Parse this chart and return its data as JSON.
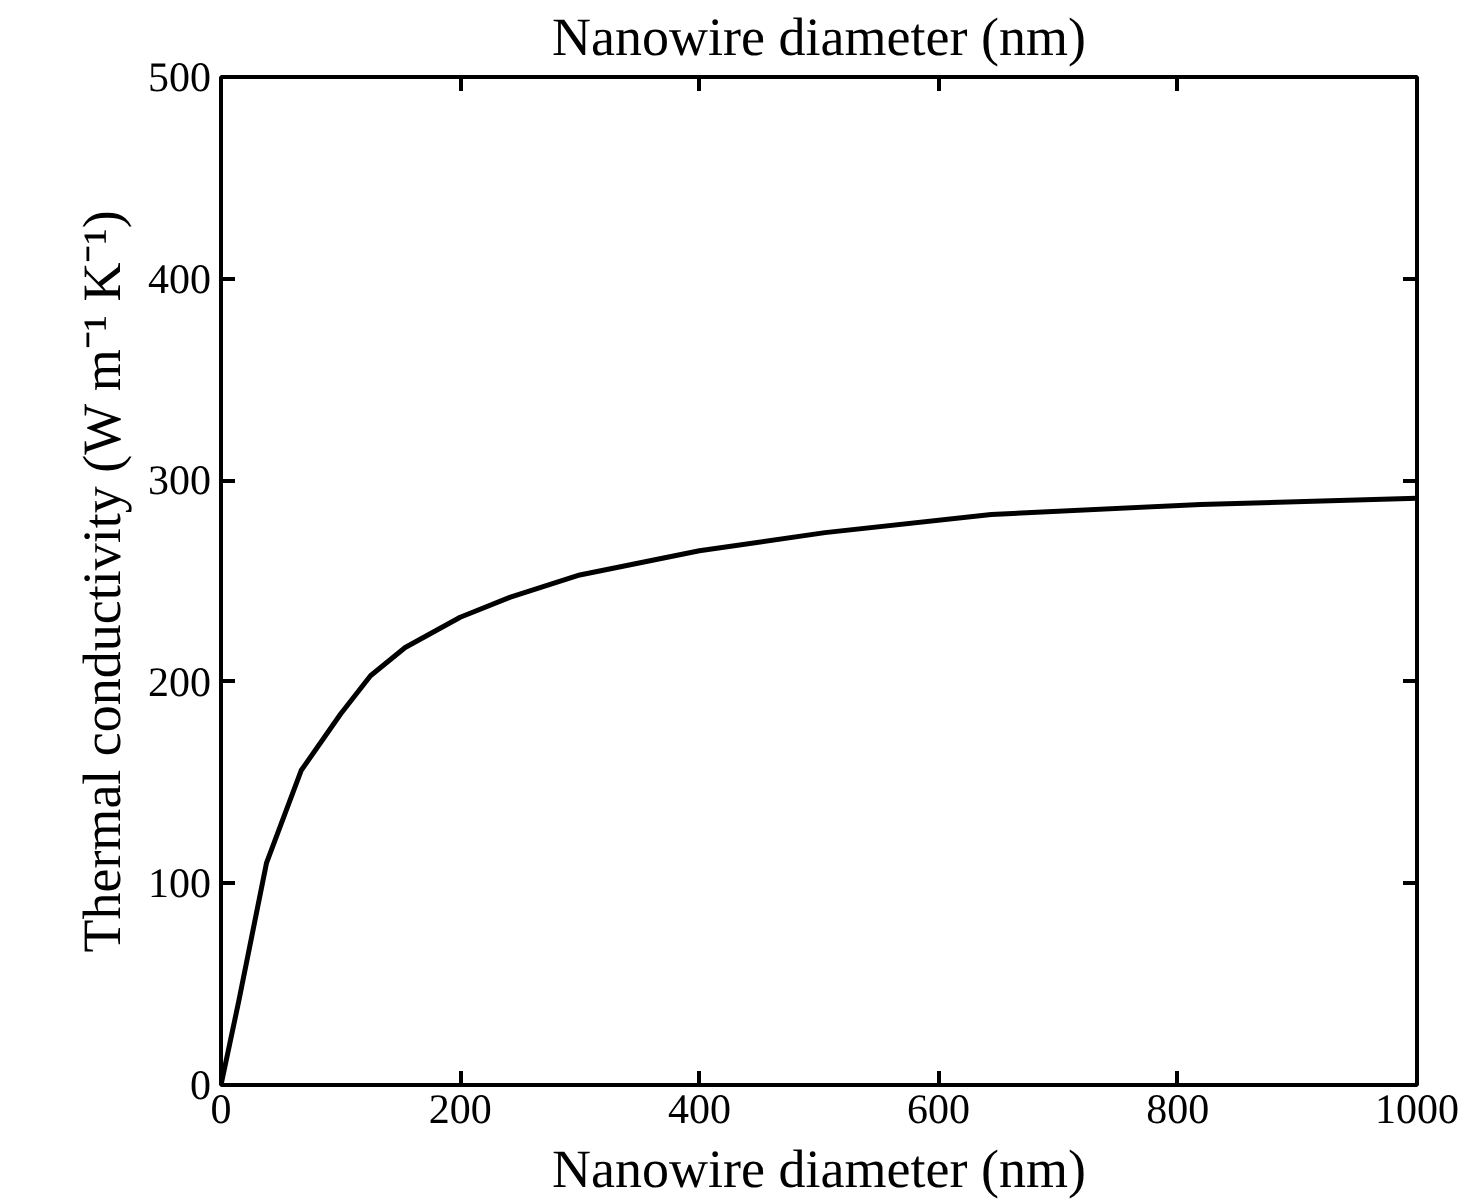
{
  "chart_data": {
    "type": "line",
    "xlabel": "Nanowire diameter (nm)",
    "x2label": "Nanowire diameter (nm)",
    "ylabel": "Thermal conductivity (W m⁻¹ K⁻¹)",
    "x": [
      0,
      15,
      38,
      67,
      100,
      125,
      154,
      200,
      242,
      300,
      400,
      505,
      644,
      819,
      1000
    ],
    "series": [
      {
        "color": "#000000",
        "values": [
          0,
          42,
          110,
          156,
          184,
          203,
          217,
          232,
          242,
          253,
          265,
          274,
          283,
          288,
          291
        ]
      }
    ],
    "xlim": [
      0,
      1000
    ],
    "xticks": [
      0,
      200,
      400,
      600,
      800,
      1000
    ],
    "ylim": [
      0,
      500
    ],
    "yticks": [
      0,
      100,
      200,
      300,
      400,
      500
    ],
    "grid": false,
    "marker": "none",
    "line_style": "solid"
  }
}
